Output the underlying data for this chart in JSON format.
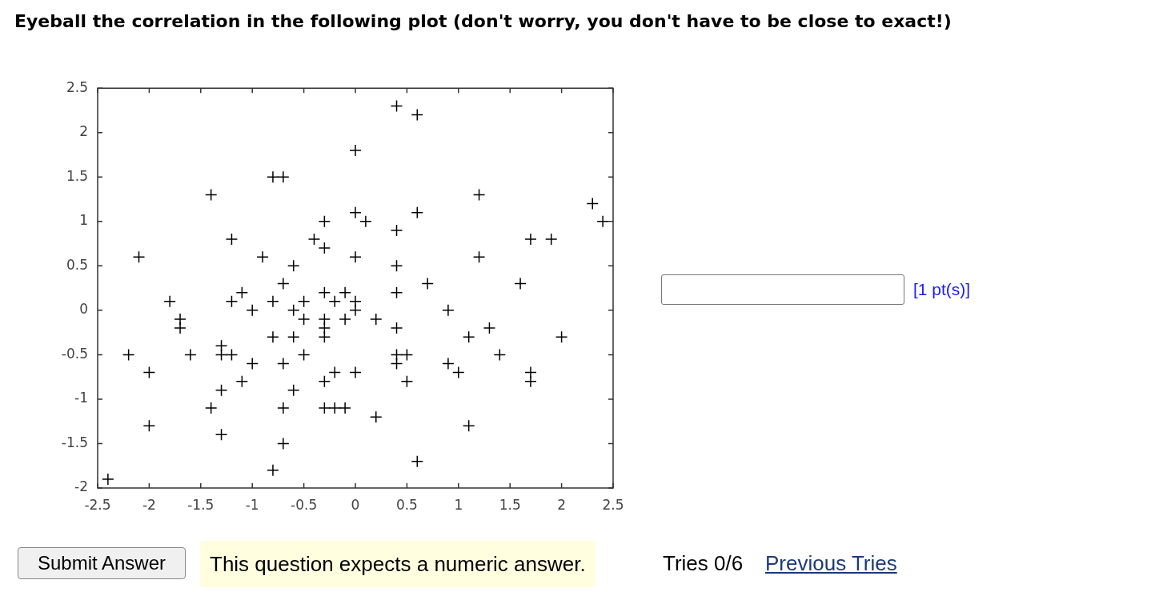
{
  "chart_data": {
    "type": "scatter",
    "title": "Eyeball the correlation in the following plot (don't worry, you don't have to be close to exact!)",
    "annotations": [
      "[1 pt(s)]",
      "Submit Answer",
      "This question expects a numeric answer.",
      "Tries 0/6",
      "Previous Tries"
    ],
    "x": [
      0.4,
      0.6,
      0,
      -0.8,
      -0.7,
      -1.4,
      1.2,
      2.3,
      2.4,
      -0.3,
      0,
      0.1,
      0.6,
      0.4,
      -1.2,
      -0.4,
      -0.3,
      1.7,
      1.9,
      -2.1,
      -0.9,
      -0.6,
      0,
      0.4,
      1.2,
      -0.7,
      0.7,
      1.6,
      -1.1,
      -0.3,
      -0.1,
      0.4,
      -1.8,
      -1.2,
      -0.8,
      -0.5,
      -0.2,
      0,
      -1.0,
      -0.6,
      0,
      0.9,
      -1.7,
      -1.7,
      -0.5,
      -0.3,
      -0.3,
      -0.3,
      -0.1,
      0.2,
      -0.8,
      -0.6,
      0.4,
      1.1,
      1.3,
      2.0,
      -2.2,
      -1.6,
      -1.3,
      -1.3,
      -1.2,
      -0.5,
      0.4,
      0.5,
      1.4,
      -1.0,
      -0.7,
      0.4,
      0.9,
      -2.0,
      -0.2,
      0,
      1.0,
      1.7,
      -1.1,
      -0.3,
      0.5,
      1.7,
      -1.3,
      -0.6,
      -1.4,
      -0.7,
      -0.3,
      -0.2,
      -0.1,
      0.2,
      -2.0,
      1.1,
      -1.3,
      -0.7,
      0.6,
      -0.8,
      -2.4
    ],
    "values": [
      2.3,
      2.2,
      1.8,
      1.5,
      1.5,
      1.3,
      1.3,
      1.2,
      1.0,
      1.0,
      1.1,
      1.0,
      1.1,
      0.9,
      0.8,
      0.8,
      0.7,
      0.8,
      0.8,
      0.6,
      0.6,
      0.5,
      0.6,
      0.5,
      0.6,
      0.3,
      0.3,
      0.3,
      0.2,
      0.2,
      0.2,
      0.2,
      0.1,
      0.1,
      0.1,
      0.1,
      0.1,
      0.1,
      0,
      0,
      0,
      0,
      -0.1,
      -0.2,
      -0.1,
      -0.1,
      -0.2,
      -0.3,
      -0.1,
      -0.1,
      -0.3,
      -0.3,
      -0.2,
      -0.3,
      -0.2,
      -0.3,
      -0.5,
      -0.5,
      -0.4,
      -0.5,
      -0.5,
      -0.5,
      -0.5,
      -0.5,
      -0.5,
      -0.6,
      -0.6,
      -0.6,
      -0.6,
      -0.7,
      -0.7,
      -0.7,
      -0.7,
      -0.7,
      -0.8,
      -0.8,
      -0.8,
      -0.8,
      -0.9,
      -0.9,
      -1.1,
      -1.1,
      -1.1,
      -1.1,
      -1.1,
      -1.2,
      -1.3,
      -1.3,
      -1.4,
      -1.5,
      -1.7,
      -1.8,
      -1.9
    ],
    "color": "#000000",
    "marker": "cross",
    "xlim": [
      -2.5,
      2.5
    ],
    "xticks": [
      -2.5,
      -2,
      -1.5,
      -1,
      -0.5,
      0,
      0.5,
      1,
      1.5,
      2,
      2.5
    ],
    "ylim": [
      -2,
      2.5
    ],
    "yticks": [
      -2,
      -1.5,
      -1,
      -0.5,
      0,
      0.5,
      1,
      1.5,
      2,
      2.5
    ],
    "grid": false,
    "legend": false
  }
}
